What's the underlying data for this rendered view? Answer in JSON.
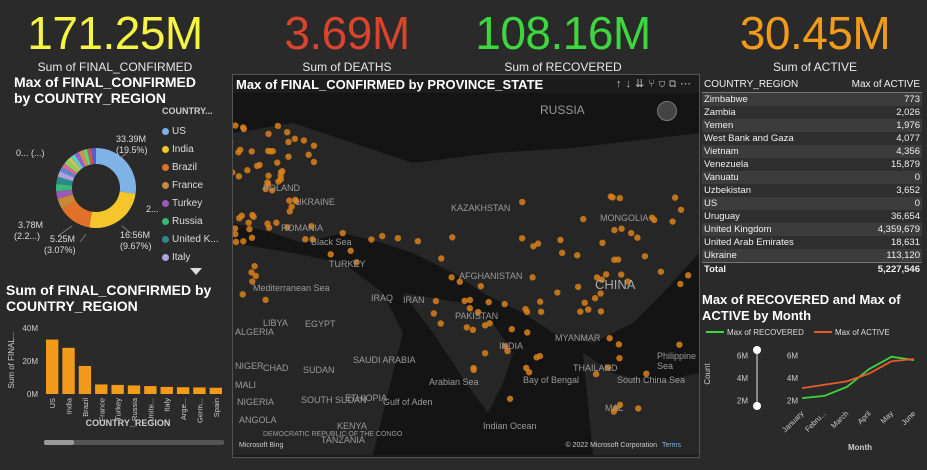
{
  "kpis": [
    {
      "value": "171.25M",
      "label": "Sum of FINAL_CONFIRMED",
      "color": "#f5f542"
    },
    {
      "value": "3.69M",
      "label": "Sum of DEATHS",
      "color": "#d9442c"
    },
    {
      "value": "108.16M",
      "label": "Sum of RECOVERED",
      "color": "#3ed63e"
    },
    {
      "value": "30.45M",
      "label": "Sum of ACTIVE",
      "color": "#f29a1a"
    }
  ],
  "donut": {
    "title": "Max of FINAL_CONFIRMED by COUNTRY_REGION",
    "legend_title": "COUNTRY...",
    "legend": [
      {
        "label": "US",
        "color": "#7fb3e8"
      },
      {
        "label": "India",
        "color": "#f5c52c"
      },
      {
        "label": "Brazil",
        "color": "#e0702a"
      },
      {
        "label": "France",
        "color": "#c88a3a"
      },
      {
        "label": "Turkey",
        "color": "#9b5ab8"
      },
      {
        "label": "Russia",
        "color": "#3ab87a"
      },
      {
        "label": "United K...",
        "color": "#2a8a8a"
      },
      {
        "label": "Italy",
        "color": "#b0a0e0"
      }
    ],
    "labels": {
      "us": "33.39M",
      "us_pct": "(19.5%)",
      "india": "2...",
      "brazil": "16.56M",
      "brazil_pct": "(9.67%)",
      "other1": "5.25M",
      "other1_pct": "(3.07%)",
      "other2": "3.78M",
      "other2_pct": "(2.2...)",
      "other3": "0... (...)"
    }
  },
  "bar": {
    "title": "Sum of FINAL_CONFIRMED by COUNTRY_REGION",
    "ylabel": "Sum of FINAL...",
    "xlabel": "COUNTRY_REGION",
    "yticks": [
      "40M",
      "20M",
      "0M"
    ]
  },
  "map": {
    "title": "Max of FINAL_CONFIRMED by PROVINCE_STATE",
    "labels": [
      "RUSSIA",
      "KAZAKHSTAN",
      "MONGOLIA",
      "CHINA",
      "POLAND",
      "ROMANIA",
      "TURKEY",
      "LIBYA",
      "EGYPT",
      "SAUDI ARABIA",
      "INDIA",
      "IRAN",
      "Black Sea",
      "Mediterranean Sea",
      "Arabian Sea",
      "SUDAN",
      "ETHIOPIA",
      "SOUTH SUDAN",
      "NIGERIA",
      "DEMOCRATIC REPUBLIC OF THE CONGO",
      "CHAD",
      "NIGER",
      "ALGERIA",
      "MALI",
      "KENYA",
      "ANGOLA",
      "TANZANIA",
      "AFGHANISTAN",
      "PAKISTAN",
      "IRAQ",
      "UKRAINE",
      "MYANMAR",
      "THAILAND",
      "Gulf of Aden",
      "South China Sea",
      "Philippine Sea",
      "Bay of Bengal",
      "Indian Ocean",
      "MAL"
    ],
    "copyright": "© 2022 Microsoft Corporation",
    "terms": "Terms",
    "bing": "Microsoft Bing"
  },
  "table": {
    "headers": [
      "COUNTRY_REGION",
      "Max of ACTIVE"
    ],
    "rows": [
      [
        "Zimbabwe",
        "773"
      ],
      [
        "Zambia",
        "2,026"
      ],
      [
        "Yemen",
        "1,976"
      ],
      [
        "West Bank and Gaza",
        "4,077"
      ],
      [
        "Vietnam",
        "4,356"
      ],
      [
        "Venezuela",
        "15,879"
      ],
      [
        "Vanuatu",
        "0"
      ],
      [
        "Uzbekistan",
        "3,652"
      ],
      [
        "US",
        "0"
      ],
      [
        "Uruguay",
        "36,654"
      ],
      [
        "United Kingdom",
        "4,359,679"
      ],
      [
        "United Arab Emirates",
        "18,631"
      ],
      [
        "Ukraine",
        "113,120"
      ]
    ],
    "total": [
      "Total",
      "5,227,546"
    ]
  },
  "line": {
    "title": "Max of RECOVERED and Max of ACTIVE by Month",
    "legend": [
      "Max of RECOVERED",
      "Max of ACTIVE"
    ],
    "ylabel": "Count",
    "xlabel": "Month",
    "yticks": [
      "6M",
      "4M",
      "2M"
    ],
    "slider_ticks": [
      "6M",
      "4M",
      "2M"
    ]
  },
  "chart_data": [
    {
      "type": "pie",
      "title": "Max of FINAL_CONFIRMED by COUNTRY_REGION",
      "categories": [
        "US",
        "India",
        "Brazil",
        "France",
        "Turkey",
        "Russia",
        "United K...",
        "Italy"
      ],
      "values": [
        33.39,
        31.0,
        16.56,
        5.25,
        3.78,
        3.6,
        3.5,
        3.0
      ],
      "unit": "M"
    },
    {
      "type": "bar",
      "title": "Sum of FINAL_CONFIRMED by COUNTRY_REGION",
      "categories": [
        "US",
        "India",
        "Brazil",
        "France",
        "Turkey",
        "Russia",
        "Unite...",
        "Italy",
        "Arge...",
        "Germ...",
        "Spain"
      ],
      "values": [
        33,
        28,
        17,
        5.8,
        5.5,
        5.2,
        4.8,
        4.3,
        4.1,
        4.0,
        3.8
      ],
      "ylabel": "Sum of FINAL...",
      "xlabel": "COUNTRY_REGION",
      "ylim": [
        0,
        40
      ],
      "unit": "M"
    },
    {
      "type": "line",
      "title": "Max of RECOVERED and Max of ACTIVE by Month",
      "x": [
        "January",
        "Febru...",
        "March",
        "April",
        "May",
        "June"
      ],
      "series": [
        {
          "name": "Max of RECOVERED",
          "values": [
            2.2,
            2.4,
            3.2,
            4.8,
            5.9,
            5.6
          ],
          "color": "#3ed63e"
        },
        {
          "name": "Max of ACTIVE",
          "values": [
            3.1,
            3.4,
            3.7,
            4.4,
            5.5,
            5.7
          ],
          "color": "#e85a2a"
        }
      ],
      "ylabel": "Count",
      "xlabel": "Month",
      "ylim": [
        1.5,
        6.5
      ],
      "unit": "M"
    }
  ]
}
